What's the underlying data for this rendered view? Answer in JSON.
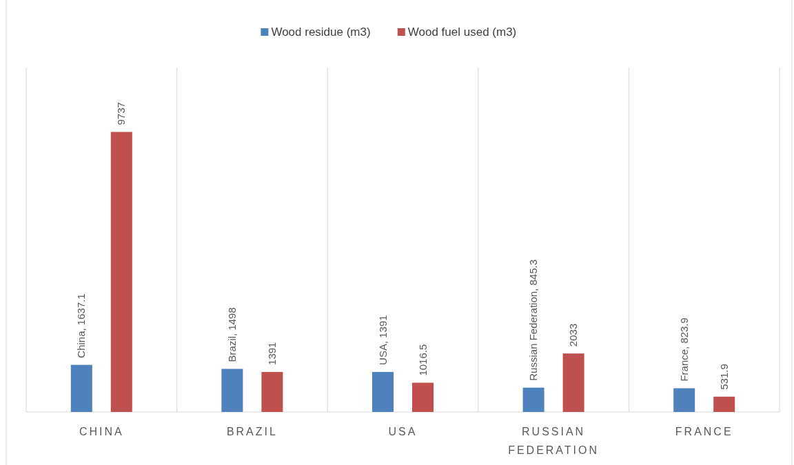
{
  "chart_data": {
    "type": "bar",
    "categories": [
      "CHINA",
      "BRAZIL",
      "USA",
      "RUSSIAN FEDERATION",
      "FRANCE"
    ],
    "series": [
      {
        "name": "Wood residue (m3)",
        "color": "#4f81bd",
        "values": [
          1637.1,
          1498,
          1391,
          845.3,
          823.9
        ],
        "value_labels": [
          "China, 1637.1",
          "Brazil, 1498",
          "USA, 1391",
          "Russian Federation, 845.3",
          "France, 823.9"
        ]
      },
      {
        "name": "Wood fuel used (m3)",
        "color": "#c0504d",
        "values": [
          9737,
          1391,
          1016.5,
          2033,
          531.9
        ],
        "value_labels": [
          "9737",
          "1391",
          "1016.5",
          "2033",
          "531.9"
        ]
      }
    ],
    "legend": "top",
    "grid": "x"
  }
}
